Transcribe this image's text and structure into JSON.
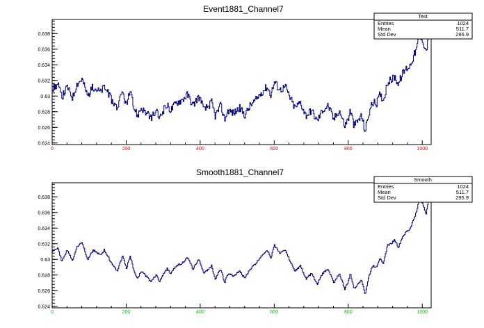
{
  "chart_data": [
    {
      "type": "line",
      "title": "Event1881_Channel7",
      "xlim": [
        0,
        1024
      ],
      "ylim": [
        0.6238,
        0.6398
      ],
      "x_ticks": [
        0,
        200,
        400,
        600,
        800,
        1000
      ],
      "x_tick_labels": [
        "0",
        "200",
        "400",
        "600",
        "800",
        "1000"
      ],
      "x_tick_color": "#ff0000",
      "y_ticks": [
        0.624,
        0.626,
        0.628,
        0.63,
        0.632,
        0.634,
        0.636,
        0.638
      ],
      "y_tick_labels": [
        "0.624",
        "0.626",
        "0.628",
        "0.63",
        "0.632",
        "0.634",
        "0.636",
        "0.638"
      ],
      "line_color": "#000080",
      "noise": 0.0005,
      "stats_box": {
        "title": "Test",
        "rows": [
          {
            "label": "Entries",
            "value": "1024"
          },
          {
            "label": "Mean",
            "value": "511.7"
          },
          {
            "label": "Std Dev",
            "value": "295.9"
          }
        ]
      },
      "series": [
        {
          "x": [
            0,
            15,
            25,
            40,
            55,
            65,
            80,
            95,
            110,
            130,
            140,
            160,
            175,
            190,
            200,
            210,
            220,
            230,
            240,
            250,
            265,
            280,
            290,
            300,
            310,
            320,
            335,
            350,
            365,
            380,
            395,
            410,
            430,
            440,
            455,
            465,
            475,
            490,
            505,
            520,
            535,
            550,
            565,
            580,
            590,
            600,
            615,
            630,
            640,
            655,
            670,
            685,
            700,
            715,
            730,
            745,
            760,
            775,
            790,
            800,
            805,
            815,
            825,
            835,
            845,
            855,
            865,
            875,
            885,
            895,
            905,
            915,
            925,
            935,
            945,
            955,
            965,
            975,
            985,
            990,
            1000,
            1010,
            1020
          ],
          "y": [
            0.631,
            0.6315,
            0.6298,
            0.6312,
            0.6298,
            0.6315,
            0.6322,
            0.63,
            0.6312,
            0.6305,
            0.6312,
            0.6295,
            0.6285,
            0.6305,
            0.6288,
            0.6305,
            0.6285,
            0.6275,
            0.6285,
            0.628,
            0.6272,
            0.628,
            0.6272,
            0.6282,
            0.6288,
            0.6282,
            0.6292,
            0.6295,
            0.6302,
            0.6288,
            0.63,
            0.6282,
            0.6292,
            0.6275,
            0.6288,
            0.627,
            0.6282,
            0.6278,
            0.6285,
            0.6276,
            0.6288,
            0.6295,
            0.6305,
            0.6312,
            0.6302,
            0.6318,
            0.6308,
            0.6312,
            0.63,
            0.6285,
            0.6292,
            0.6275,
            0.6282,
            0.6268,
            0.6282,
            0.6288,
            0.627,
            0.6282,
            0.6262,
            0.6272,
            0.6282,
            0.6262,
            0.6268,
            0.6275,
            0.6255,
            0.6278,
            0.6292,
            0.629,
            0.6302,
            0.6295,
            0.6318,
            0.632,
            0.6325,
            0.6315,
            0.6328,
            0.6335,
            0.6338,
            0.635,
            0.6362,
            0.6375,
            0.6372,
            0.6358,
            0.6385
          ]
        }
      ]
    },
    {
      "type": "line",
      "title": "Smooth1881_Channel7",
      "xlim": [
        0,
        1024
      ],
      "ylim": [
        0.6238,
        0.6398
      ],
      "x_ticks": [
        0,
        200,
        400,
        600,
        800,
        1000
      ],
      "x_tick_labels": [
        "0",
        "200",
        "400",
        "600",
        "800",
        "1000"
      ],
      "x_tick_color": "#00c000",
      "y_ticks": [
        0.624,
        0.626,
        0.628,
        0.63,
        0.632,
        0.634,
        0.636,
        0.638
      ],
      "y_tick_labels": [
        "0.624",
        "0.626",
        "0.628",
        "0.63",
        "0.632",
        "0.634",
        "0.636",
        "0.638"
      ],
      "line_color": "#000080",
      "noise": 0.00012,
      "stats_box": {
        "title": "Smooth",
        "rows": [
          {
            "label": "Entries",
            "value": "1024"
          },
          {
            "label": "Mean",
            "value": "511.7"
          },
          {
            "label": "Std Dev",
            "value": "295.9"
          }
        ]
      },
      "series": [
        {
          "x": [
            0,
            15,
            25,
            40,
            55,
            65,
            80,
            95,
            110,
            130,
            140,
            160,
            175,
            190,
            200,
            210,
            220,
            230,
            240,
            250,
            265,
            280,
            290,
            300,
            310,
            320,
            335,
            350,
            365,
            380,
            395,
            410,
            430,
            440,
            455,
            465,
            475,
            490,
            505,
            520,
            535,
            550,
            565,
            580,
            590,
            600,
            615,
            630,
            640,
            655,
            670,
            685,
            700,
            715,
            730,
            745,
            760,
            775,
            790,
            800,
            805,
            815,
            825,
            835,
            845,
            855,
            865,
            875,
            885,
            895,
            905,
            915,
            925,
            935,
            945,
            955,
            965,
            975,
            985,
            990,
            1000,
            1010,
            1020
          ],
          "y": [
            0.631,
            0.6315,
            0.6298,
            0.6312,
            0.6298,
            0.6315,
            0.6322,
            0.63,
            0.6312,
            0.6305,
            0.6312,
            0.6295,
            0.6285,
            0.6305,
            0.6288,
            0.6305,
            0.6285,
            0.6275,
            0.6285,
            0.628,
            0.6272,
            0.628,
            0.6272,
            0.6282,
            0.6288,
            0.6282,
            0.6292,
            0.6295,
            0.6302,
            0.6288,
            0.63,
            0.6282,
            0.6292,
            0.6275,
            0.6288,
            0.627,
            0.6282,
            0.6278,
            0.6285,
            0.6276,
            0.6288,
            0.6295,
            0.6305,
            0.6312,
            0.6302,
            0.6318,
            0.6308,
            0.6312,
            0.63,
            0.6285,
            0.6292,
            0.6275,
            0.6282,
            0.6268,
            0.6282,
            0.6288,
            0.627,
            0.6282,
            0.6262,
            0.6272,
            0.6282,
            0.6262,
            0.6268,
            0.6275,
            0.6255,
            0.6278,
            0.6292,
            0.629,
            0.6302,
            0.6295,
            0.6318,
            0.632,
            0.6325,
            0.6315,
            0.6328,
            0.6335,
            0.6338,
            0.635,
            0.6362,
            0.6375,
            0.6372,
            0.6358,
            0.6385
          ]
        }
      ]
    }
  ]
}
